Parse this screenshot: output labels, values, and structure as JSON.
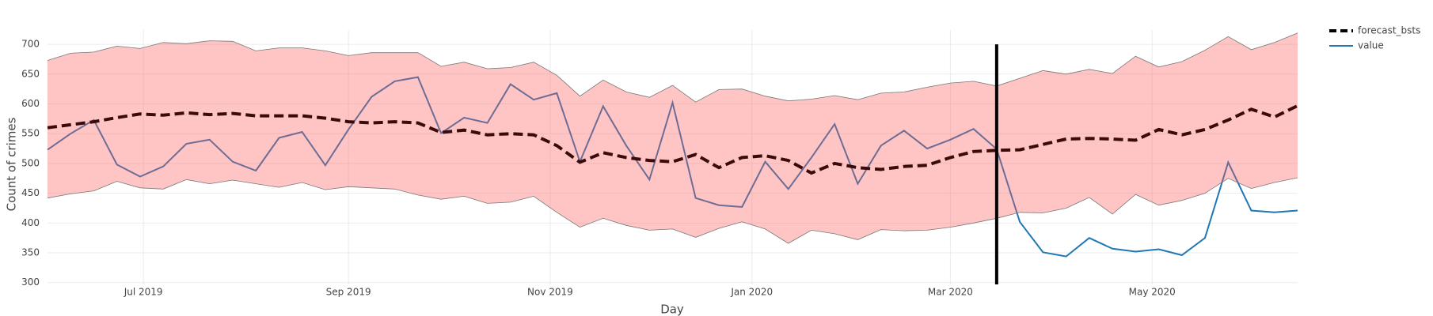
{
  "chart_data": {
    "type": "line",
    "x_title": "Day",
    "y_title": "Count of crimes",
    "x_start": "2019-06-02",
    "x_step_days": 7,
    "xlim": [
      "2019-06-02",
      "2020-06-14"
    ],
    "xticks": [
      {
        "value": "2019-07-01",
        "label": "Jul 2019"
      },
      {
        "value": "2019-09-01",
        "label": "Sep 2019"
      },
      {
        "value": "2019-11-01",
        "label": "Nov 2019"
      },
      {
        "value": "2020-01-01",
        "label": "Jan 2020"
      },
      {
        "value": "2020-03-01",
        "label": "Mar 2020"
      },
      {
        "value": "2020-05-01",
        "label": "May 2020"
      }
    ],
    "ylim": [
      297,
      724
    ],
    "yticks": [
      300,
      350,
      400,
      450,
      500,
      550,
      600,
      650,
      700
    ],
    "grid": true,
    "legend": "top-right",
    "band": {
      "color": "rgba(255,90,90,0.35)",
      "upper": [
        673,
        685,
        687,
        697,
        693,
        703,
        701,
        706,
        705,
        689,
        694,
        694,
        689,
        681,
        686,
        686,
        686,
        663,
        670,
        659,
        661,
        670,
        648,
        613,
        640,
        620,
        611,
        631,
        603,
        624,
        625,
        613,
        605,
        608,
        614,
        607,
        618,
        620,
        628,
        635,
        638,
        630,
        643,
        656,
        650,
        658,
        651,
        680,
        662,
        671,
        690,
        713,
        691,
        703,
        719
      ],
      "lower": [
        442,
        449,
        454,
        470,
        459,
        457,
        473,
        466,
        472,
        466,
        460,
        468,
        456,
        461,
        459,
        457,
        447,
        440,
        445,
        433,
        435,
        445,
        418,
        393,
        408,
        396,
        388,
        390,
        376,
        391,
        402,
        390,
        366,
        388,
        382,
        372,
        389,
        387,
        388,
        393,
        400,
        408,
        418,
        417,
        425,
        443,
        415,
        448,
        430,
        438,
        450,
        475,
        458,
        468,
        476
      ]
    },
    "vline_x": "2020-03-15",
    "series": [
      {
        "name": "forecast_bsts",
        "color": "#3a0b0b",
        "dash": true,
        "values": [
          560,
          565,
          570,
          577,
          583,
          581,
          585,
          582,
          584,
          580,
          580,
          580,
          576,
          570,
          568,
          570,
          568,
          552,
          556,
          548,
          550,
          548,
          530,
          502,
          518,
          510,
          505,
          503,
          515,
          493,
          510,
          513,
          505,
          484,
          500,
          493,
          490,
          495,
          497,
          510,
          520,
          522,
          523,
          532,
          541,
          542,
          541,
          539,
          557,
          548,
          557,
          573,
          591,
          578,
          597
        ]
      },
      {
        "name": "value",
        "color": "#1f77b4",
        "dash": false,
        "values": [
          523,
          550,
          573,
          498,
          478,
          495,
          533,
          540,
          503,
          488,
          543,
          553,
          497,
          557,
          612,
          638,
          645,
          551,
          577,
          568,
          633,
          607,
          618,
          503,
          596,
          530,
          473,
          602,
          442,
          430,
          427,
          503,
          457,
          510,
          566,
          466,
          530,
          555,
          525,
          540,
          558,
          524,
          402,
          351,
          344,
          375,
          357,
          352,
          356,
          346,
          375,
          502,
          421,
          418,
          421
        ]
      }
    ]
  }
}
